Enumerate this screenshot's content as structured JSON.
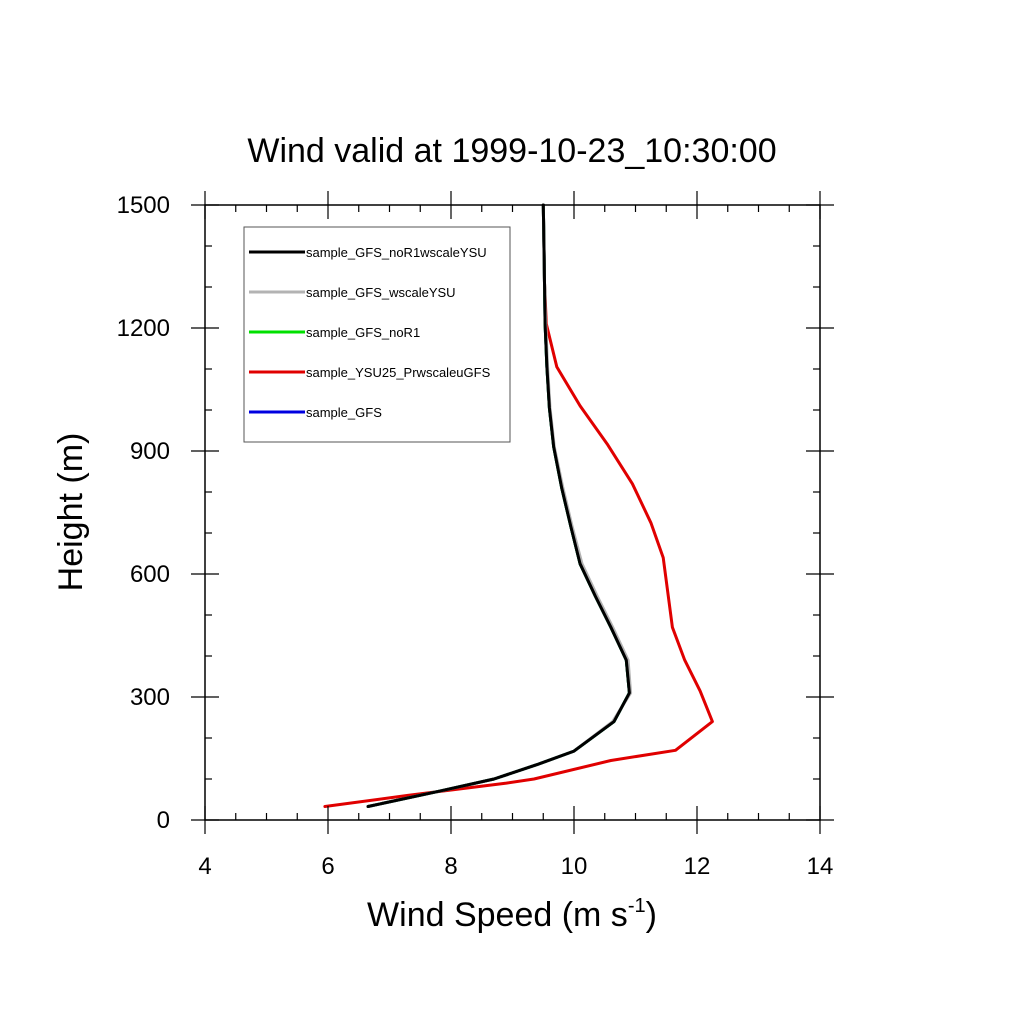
{
  "chart_data": {
    "type": "line",
    "title": "Wind valid at 1999-10-23_10:30:00",
    "xlabel": "Wind Speed (m s",
    "xlabel_superscript": "-1",
    "xlabel_suffix": ")",
    "ylabel": "Height (m)",
    "xlim": [
      4,
      14
    ],
    "ylim": [
      0,
      1500
    ],
    "x_ticks": [
      "4",
      "6",
      "8",
      "10",
      "12",
      "14"
    ],
    "y_ticks": [
      "0",
      "300",
      "600",
      "900",
      "1200",
      "1500"
    ],
    "grid": false,
    "legend_position": "top-left",
    "series": [
      {
        "name": "sample_GFS_noR1wscaleYSU",
        "color": "#000000",
        "points": [
          [
            6.65,
            33
          ],
          [
            7.8,
            70
          ],
          [
            8.7,
            100
          ],
          [
            9.4,
            135
          ],
          [
            10.0,
            168
          ],
          [
            10.65,
            240
          ],
          [
            10.9,
            310
          ],
          [
            10.85,
            390
          ],
          [
            10.6,
            470
          ],
          [
            10.35,
            545
          ],
          [
            10.1,
            625
          ],
          [
            9.95,
            715
          ],
          [
            9.8,
            810
          ],
          [
            9.67,
            910
          ],
          [
            9.6,
            1005
          ],
          [
            9.56,
            1105
          ],
          [
            9.53,
            1210
          ],
          [
            9.52,
            1310
          ],
          [
            9.51,
            1410
          ],
          [
            9.5,
            1500
          ]
        ]
      },
      {
        "name": "sample_GFS_wscaleYSU",
        "color": "#b3b3b3",
        "points": [
          [
            6.65,
            33
          ],
          [
            7.8,
            70
          ],
          [
            8.7,
            100
          ],
          [
            9.4,
            135
          ],
          [
            10.0,
            168
          ],
          [
            10.63,
            240
          ],
          [
            10.92,
            310
          ],
          [
            10.88,
            390
          ],
          [
            10.63,
            470
          ],
          [
            10.38,
            545
          ],
          [
            10.13,
            625
          ],
          [
            9.97,
            715
          ],
          [
            9.82,
            810
          ],
          [
            9.68,
            910
          ],
          [
            9.61,
            1005
          ],
          [
            9.57,
            1105
          ],
          [
            9.54,
            1210
          ],
          [
            9.52,
            1310
          ],
          [
            9.51,
            1410
          ],
          [
            9.5,
            1500
          ]
        ]
      },
      {
        "name": "sample_GFS_noR1",
        "color": "#00e000",
        "points": [
          [
            6.65,
            33
          ],
          [
            7.8,
            70
          ],
          [
            8.7,
            100
          ],
          [
            9.4,
            135
          ],
          [
            10.0,
            168
          ],
          [
            10.65,
            240
          ],
          [
            10.9,
            310
          ],
          [
            10.85,
            390
          ],
          [
            10.6,
            470
          ],
          [
            10.35,
            545
          ],
          [
            10.1,
            625
          ],
          [
            9.95,
            715
          ],
          [
            9.8,
            810
          ],
          [
            9.67,
            910
          ],
          [
            9.6,
            1005
          ],
          [
            9.56,
            1105
          ],
          [
            9.53,
            1210
          ],
          [
            9.52,
            1310
          ],
          [
            9.51,
            1410
          ],
          [
            9.5,
            1500
          ]
        ]
      },
      {
        "name": "sample_YSU25_PrwscaleuGFS",
        "color": "#e00000",
        "points": [
          [
            5.95,
            33
          ],
          [
            7.3,
            60
          ],
          [
            8.9,
            90
          ],
          [
            9.35,
            100
          ],
          [
            10.6,
            145
          ],
          [
            11.65,
            170
          ],
          [
            12.25,
            240
          ],
          [
            12.05,
            315
          ],
          [
            11.8,
            390
          ],
          [
            11.6,
            470
          ],
          [
            11.45,
            640
          ],
          [
            11.25,
            725
          ],
          [
            10.95,
            820
          ],
          [
            10.55,
            915
          ],
          [
            10.1,
            1010
          ],
          [
            9.72,
            1105
          ],
          [
            9.55,
            1210
          ],
          [
            9.52,
            1310
          ],
          [
            9.51,
            1410
          ],
          [
            9.5,
            1500
          ]
        ]
      },
      {
        "name": "sample_GFS",
        "color": "#0000e0",
        "points": [
          [
            6.65,
            33
          ],
          [
            7.8,
            70
          ],
          [
            8.7,
            100
          ],
          [
            9.4,
            135
          ],
          [
            10.0,
            168
          ],
          [
            10.65,
            240
          ],
          [
            10.9,
            310
          ],
          [
            10.85,
            390
          ],
          [
            10.6,
            470
          ],
          [
            10.35,
            545
          ],
          [
            10.1,
            625
          ],
          [
            9.95,
            715
          ],
          [
            9.8,
            810
          ],
          [
            9.67,
            910
          ],
          [
            9.6,
            1005
          ],
          [
            9.56,
            1105
          ],
          [
            9.53,
            1210
          ],
          [
            9.52,
            1310
          ],
          [
            9.51,
            1410
          ],
          [
            9.5,
            1500
          ]
        ]
      }
    ],
    "draw_order": [
      3,
      4,
      2,
      1,
      0
    ]
  }
}
